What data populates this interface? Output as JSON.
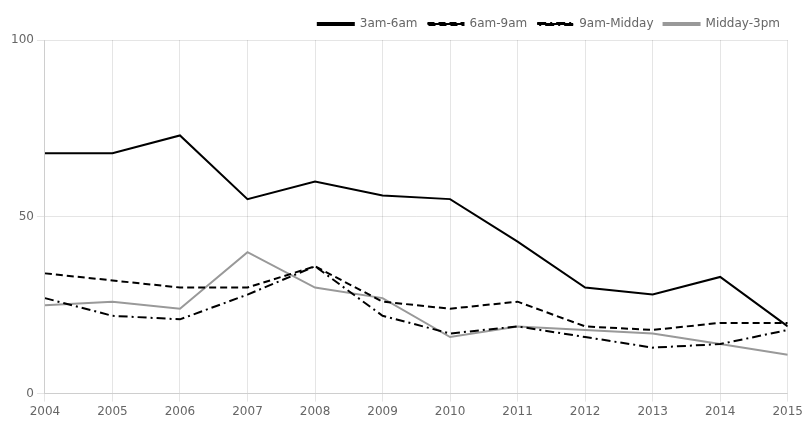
{
  "chart_data": {
    "type": "line",
    "x": [
      2004,
      2005,
      2006,
      2007,
      2008,
      2009,
      2010,
      2011,
      2012,
      2013,
      2014,
      2015
    ],
    "series": [
      {
        "name": "3am-6am",
        "color": "#000000",
        "line_style": "solid",
        "values": [
          68,
          68,
          73,
          55,
          60,
          56,
          55,
          43,
          30,
          28,
          33,
          19
        ]
      },
      {
        "name": "6am-9am",
        "color": "#000000",
        "line_style": "dashed",
        "values": [
          34,
          32,
          30,
          30,
          36,
          26,
          24,
          26,
          19,
          18,
          20,
          20
        ]
      },
      {
        "name": "9am-Midday",
        "color": "#000000",
        "line_style": "dashdot",
        "values": [
          27,
          22,
          21,
          28,
          36,
          22,
          17,
          19,
          16,
          13,
          14,
          18
        ]
      },
      {
        "name": "Midday-3pm",
        "color": "#999999",
        "line_style": "solid",
        "values": [
          25,
          26,
          24,
          40,
          30,
          27,
          16,
          19,
          18,
          17,
          14,
          11
        ]
      }
    ],
    "xlim": [
      2004,
      2015
    ],
    "xticks": [
      2004,
      2005,
      2006,
      2007,
      2008,
      2009,
      2010,
      2011,
      2012,
      2013,
      2014,
      2015
    ],
    "ylim": [
      0,
      100
    ],
    "yticks": [
      0,
      50,
      100
    ],
    "grid": true,
    "legend": "upper right"
  }
}
